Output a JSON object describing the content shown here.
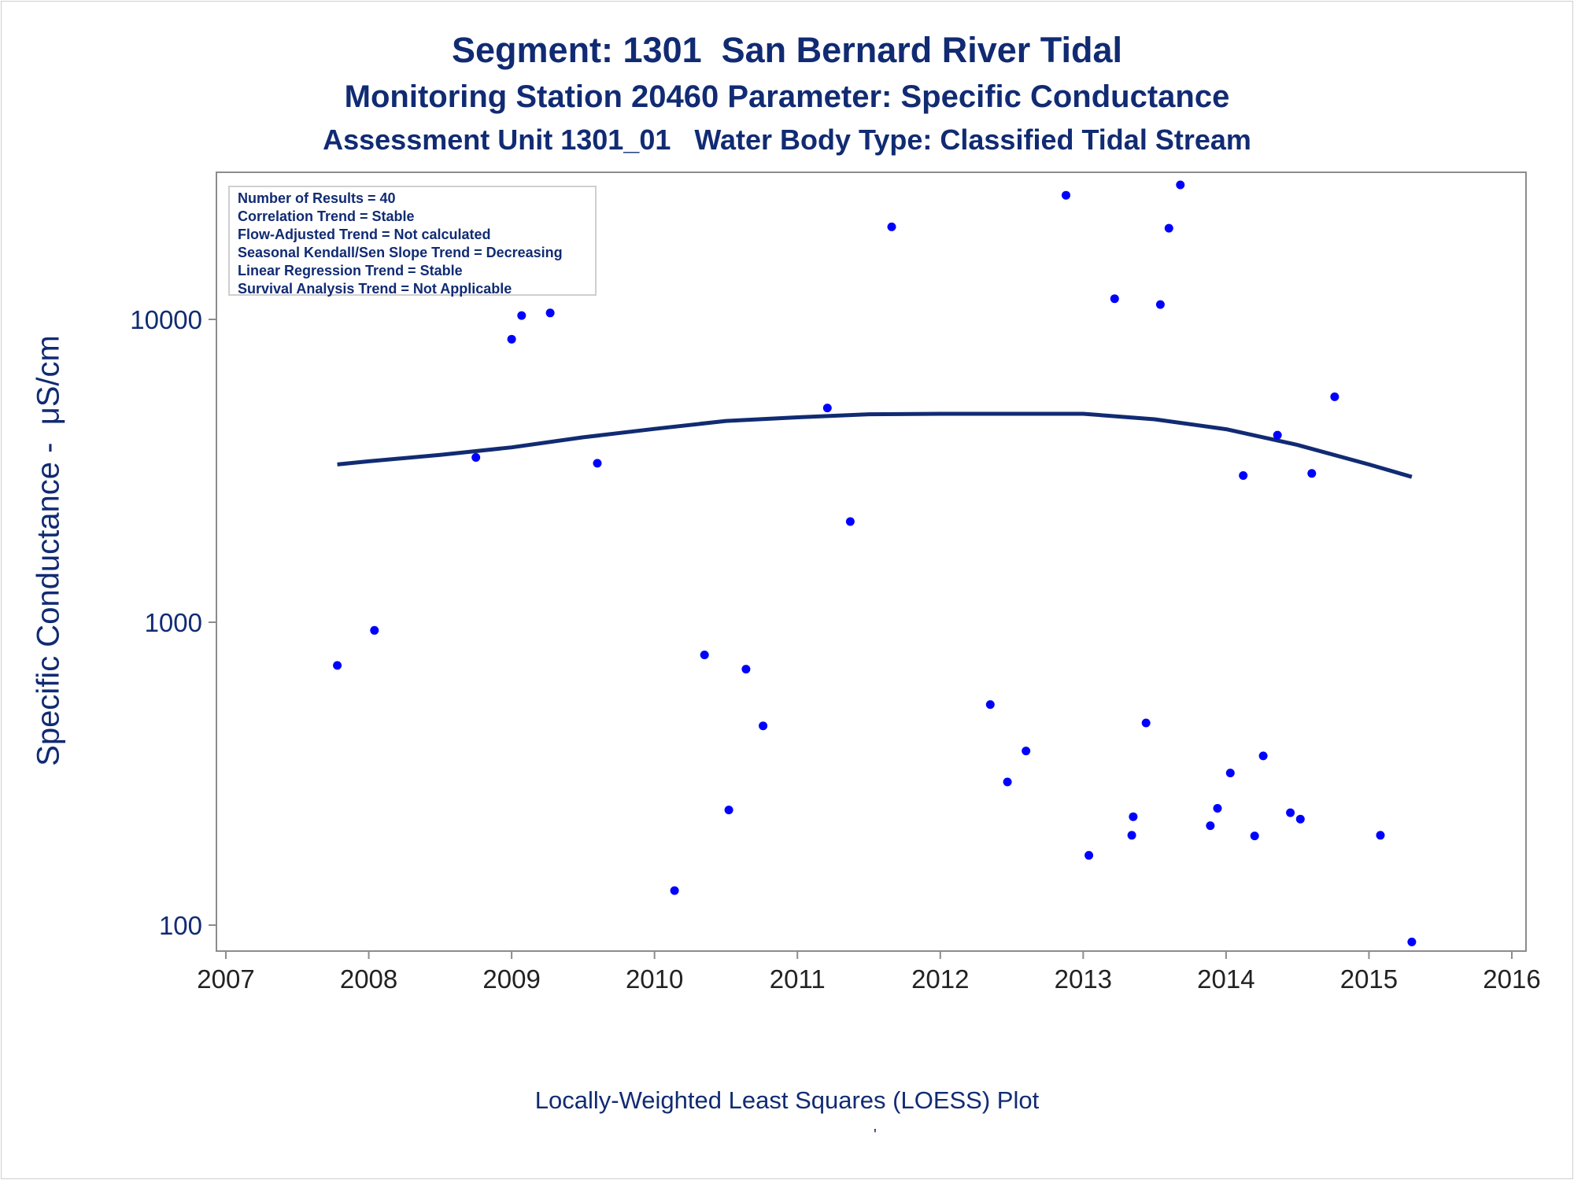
{
  "titles": {
    "line1": "Segment: 1301  San Bernard River Tidal",
    "line2": "Monitoring Station 20460 Parameter: Specific Conductance",
    "line3": "Assessment Unit 1301_01   Water Body Type: Classified Tidal Stream"
  },
  "footnote": "Locally-Weighted Least Squares (LOESS) Plot",
  "footnote_mark": "'",
  "legend": {
    "lines": [
      "Number of Results = 40",
      "Correlation Trend = Stable",
      "Flow-Adjusted Trend = Not calculated",
      "Seasonal Kendall/Sen Slope Trend = Decreasing",
      "Linear Regression Trend = Stable",
      "Survival Analysis Trend = Not Applicable"
    ]
  },
  "chart_data": {
    "type": "scatter",
    "ylabel": "Specific Conductance -  μS/cm",
    "xlabel": "",
    "x_ticks": [
      2007,
      2008,
      2009,
      2010,
      2011,
      2012,
      2013,
      2014,
      2015,
      2016
    ],
    "y_ticks": [
      100,
      1000,
      10000
    ],
    "xlim": [
      2007,
      2016
    ],
    "ylim": [
      85,
      30000
    ],
    "y_scale": "log",
    "grid": false,
    "legend_position": "top-left",
    "colors": {
      "points": "#0000ff",
      "loess": "#112b73",
      "axis": "#8c8c8c",
      "text": "#112b73"
    },
    "series": [
      {
        "kind": "points",
        "points": [
          [
            2007.78,
            720
          ],
          [
            2008.04,
            940
          ],
          [
            2008.75,
            3500
          ],
          [
            2009.0,
            8600
          ],
          [
            2009.07,
            10300
          ],
          [
            2009.27,
            10500
          ],
          [
            2009.6,
            3350
          ],
          [
            2010.14,
            130
          ],
          [
            2010.35,
            780
          ],
          [
            2010.52,
            240
          ],
          [
            2010.64,
            700
          ],
          [
            2010.76,
            455
          ],
          [
            2011.21,
            5100
          ],
          [
            2011.37,
            2150
          ],
          [
            2011.66,
            20200
          ],
          [
            2012.35,
            535
          ],
          [
            2012.47,
            297
          ],
          [
            2012.6,
            376
          ],
          [
            2012.88,
            25700
          ],
          [
            2013.04,
            170
          ],
          [
            2013.22,
            11700
          ],
          [
            2013.34,
            198
          ],
          [
            2013.35,
            228
          ],
          [
            2013.44,
            465
          ],
          [
            2013.54,
            11200
          ],
          [
            2013.6,
            20000
          ],
          [
            2013.68,
            27800
          ],
          [
            2013.89,
            213
          ],
          [
            2013.94,
            243
          ],
          [
            2014.03,
            318
          ],
          [
            2014.12,
            3050
          ],
          [
            2014.2,
            197
          ],
          [
            2014.26,
            362
          ],
          [
            2014.36,
            4150
          ],
          [
            2014.45,
            235
          ],
          [
            2014.52,
            224
          ],
          [
            2014.6,
            3100
          ],
          [
            2014.76,
            5550
          ],
          [
            2015.08,
            198
          ],
          [
            2015.3,
            88
          ]
        ]
      },
      {
        "kind": "loess",
        "points": [
          [
            2007.78,
            3320
          ],
          [
            2008.0,
            3400
          ],
          [
            2008.5,
            3570
          ],
          [
            2009.0,
            3780
          ],
          [
            2009.5,
            4080
          ],
          [
            2010.0,
            4350
          ],
          [
            2010.5,
            4620
          ],
          [
            2011.0,
            4750
          ],
          [
            2011.5,
            4860
          ],
          [
            2012.0,
            4880
          ],
          [
            2012.5,
            4880
          ],
          [
            2013.0,
            4880
          ],
          [
            2013.5,
            4680
          ],
          [
            2014.0,
            4340
          ],
          [
            2014.5,
            3850
          ],
          [
            2015.0,
            3320
          ],
          [
            2015.3,
            3020
          ]
        ]
      }
    ]
  }
}
